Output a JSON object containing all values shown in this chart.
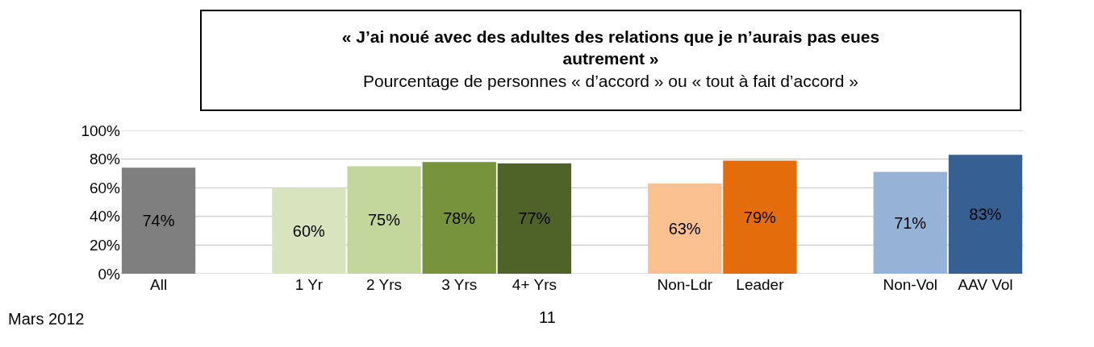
{
  "chart_data": {
    "type": "bar",
    "title": "« J’ai noué avec des adultes des relations que je n’aurais pas eues autrement »",
    "subtitle": "Pourcentage de personnes « d’accord » ou « tout à fait d’accord »",
    "categories": [
      "All",
      null,
      "1 Yr",
      "2 Yrs",
      "3 Yrs",
      "4+ Yrs",
      null,
      "Non-Ldr",
      "Leader",
      null,
      "Non-Vol",
      "AAV Vol"
    ],
    "values": [
      74,
      null,
      60,
      75,
      78,
      77,
      null,
      63,
      79,
      null,
      71,
      83
    ],
    "colors": [
      "#7f7f7f",
      null,
      "#d7e4bd",
      "#c3d69b",
      "#77933c",
      "#4f6228",
      null,
      "#fac090",
      "#e46c0a",
      null,
      "#95b3d7",
      "#376092"
    ],
    "value_labels": [
      "74%",
      null,
      "60%",
      "75%",
      "78%",
      "77%",
      null,
      "63%",
      "79%",
      null,
      "71%",
      "83%"
    ],
    "ylim": [
      0,
      100
    ],
    "yticks": [
      {
        "value": 0,
        "label": "0%"
      },
      {
        "value": 20,
        "label": "20%"
      },
      {
        "value": 40,
        "label": "40%"
      },
      {
        "value": 60,
        "label": "60%"
      },
      {
        "value": 80,
        "label": "80%"
      },
      {
        "value": 100,
        "label": "100%"
      }
    ],
    "grid": "y",
    "annotations": [
      "Mars 2012",
      "11"
    ]
  }
}
